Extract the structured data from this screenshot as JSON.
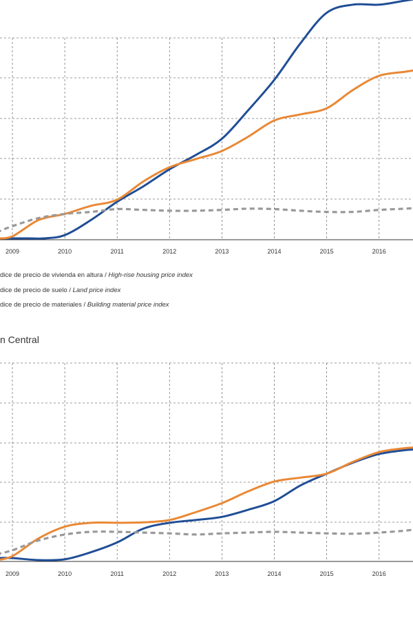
{
  "legend": [
    {
      "es": "dice de precio de vivienda en altura",
      "sep": " / ",
      "en": "High-rise housing price index",
      "color": "#1f4e96"
    },
    {
      "es": "dice de precio de suelo",
      "sep": " / ",
      "en": "Land price index",
      "color": "#e98835"
    },
    {
      "es": "dice de precio de materiales",
      "sep": " / ",
      "en": "Building material price index",
      "color": "#999999"
    }
  ],
  "subtitle": "n Central",
  "chart_data": [
    {
      "type": "line",
      "x_ticks": [
        "2009",
        "2010",
        "2011",
        "2012",
        "2013",
        "2014",
        "2015",
        "2016"
      ],
      "grid": true,
      "series": [
        {
          "key": "housing",
          "color": "#1f4e96",
          "dash": false,
          "points": [
            [
              2008.7,
              0.0
            ],
            [
              2009.0,
              0.0
            ],
            [
              2009.3,
              0.0
            ],
            [
              2009.6,
              0.0
            ],
            [
              2010.0,
              0.08
            ],
            [
              2010.5,
              0.45
            ],
            [
              2011.0,
              0.9
            ],
            [
              2011.5,
              1.28
            ],
            [
              2012.0,
              1.7
            ],
            [
              2012.5,
              2.05
            ],
            [
              2013.0,
              2.45
            ],
            [
              2013.5,
              3.15
            ],
            [
              2014.0,
              3.9
            ],
            [
              2014.5,
              4.8
            ],
            [
              2015.0,
              5.55
            ],
            [
              2015.5,
              5.75
            ],
            [
              2016.0,
              5.75
            ],
            [
              2016.5,
              5.85
            ],
            [
              2016.75,
              5.9
            ]
          ]
        },
        {
          "key": "land",
          "color": "#e98835",
          "dash": false,
          "points": [
            [
              2008.7,
              0.0
            ],
            [
              2009.0,
              0.05
            ],
            [
              2009.5,
              0.45
            ],
            [
              2010.0,
              0.6
            ],
            [
              2010.5,
              0.8
            ],
            [
              2011.0,
              0.95
            ],
            [
              2011.5,
              1.4
            ],
            [
              2012.0,
              1.75
            ],
            [
              2012.5,
              1.95
            ],
            [
              2013.0,
              2.15
            ],
            [
              2013.5,
              2.5
            ],
            [
              2014.0,
              2.9
            ],
            [
              2014.5,
              3.05
            ],
            [
              2015.0,
              3.2
            ],
            [
              2015.5,
              3.65
            ],
            [
              2016.0,
              4.0
            ],
            [
              2016.5,
              4.1
            ],
            [
              2016.75,
              4.15
            ]
          ]
        },
        {
          "key": "materials",
          "color": "#999999",
          "dash": true,
          "points": [
            [
              2008.7,
              0.15
            ],
            [
              2009.0,
              0.3
            ],
            [
              2009.5,
              0.5
            ],
            [
              2010.0,
              0.6
            ],
            [
              2010.5,
              0.65
            ],
            [
              2011.0,
              0.72
            ],
            [
              2011.5,
              0.7
            ],
            [
              2012.0,
              0.68
            ],
            [
              2012.5,
              0.68
            ],
            [
              2013.0,
              0.7
            ],
            [
              2013.5,
              0.73
            ],
            [
              2014.0,
              0.72
            ],
            [
              2014.5,
              0.68
            ],
            [
              2015.0,
              0.65
            ],
            [
              2015.5,
              0.65
            ],
            [
              2016.0,
              0.7
            ],
            [
              2016.5,
              0.73
            ],
            [
              2016.75,
              0.75
            ]
          ]
        }
      ]
    },
    {
      "type": "line",
      "x_ticks": [
        "2009",
        "2010",
        "2011",
        "2012",
        "2013",
        "2014",
        "2015",
        "2016"
      ],
      "grid": true,
      "series": [
        {
          "key": "housing",
          "color": "#1f4e96",
          "dash": false,
          "points": [
            [
              2008.7,
              0.05
            ],
            [
              2009.0,
              0.05
            ],
            [
              2009.5,
              0.0
            ],
            [
              2010.0,
              0.02
            ],
            [
              2010.5,
              0.2
            ],
            [
              2011.0,
              0.45
            ],
            [
              2011.5,
              0.8
            ],
            [
              2012.0,
              0.95
            ],
            [
              2012.5,
              1.02
            ],
            [
              2013.0,
              1.1
            ],
            [
              2013.5,
              1.28
            ],
            [
              2014.0,
              1.5
            ],
            [
              2014.5,
              1.9
            ],
            [
              2015.0,
              2.2
            ],
            [
              2015.5,
              2.48
            ],
            [
              2016.0,
              2.7
            ],
            [
              2016.5,
              2.8
            ],
            [
              2016.75,
              2.82
            ]
          ]
        },
        {
          "key": "land",
          "color": "#e98835",
          "dash": false,
          "points": [
            [
              2008.7,
              0.0
            ],
            [
              2009.0,
              0.1
            ],
            [
              2009.5,
              0.55
            ],
            [
              2010.0,
              0.85
            ],
            [
              2010.5,
              0.95
            ],
            [
              2011.0,
              0.95
            ],
            [
              2011.5,
              0.96
            ],
            [
              2012.0,
              1.02
            ],
            [
              2012.5,
              1.22
            ],
            [
              2013.0,
              1.45
            ],
            [
              2013.5,
              1.75
            ],
            [
              2014.0,
              2.0
            ],
            [
              2014.5,
              2.1
            ],
            [
              2015.0,
              2.2
            ],
            [
              2015.5,
              2.5
            ],
            [
              2016.0,
              2.75
            ],
            [
              2016.5,
              2.85
            ],
            [
              2016.75,
              2.87
            ]
          ]
        },
        {
          "key": "materials",
          "color": "#999999",
          "dash": true,
          "points": [
            [
              2008.7,
              0.15
            ],
            [
              2009.0,
              0.25
            ],
            [
              2009.5,
              0.5
            ],
            [
              2010.0,
              0.65
            ],
            [
              2010.5,
              0.72
            ],
            [
              2011.0,
              0.72
            ],
            [
              2011.5,
              0.7
            ],
            [
              2012.0,
              0.68
            ],
            [
              2012.5,
              0.65
            ],
            [
              2013.0,
              0.68
            ],
            [
              2013.5,
              0.7
            ],
            [
              2014.0,
              0.72
            ],
            [
              2014.5,
              0.7
            ],
            [
              2015.0,
              0.68
            ],
            [
              2015.5,
              0.67
            ],
            [
              2016.0,
              0.7
            ],
            [
              2016.5,
              0.75
            ],
            [
              2016.75,
              0.8
            ]
          ]
        }
      ]
    }
  ]
}
